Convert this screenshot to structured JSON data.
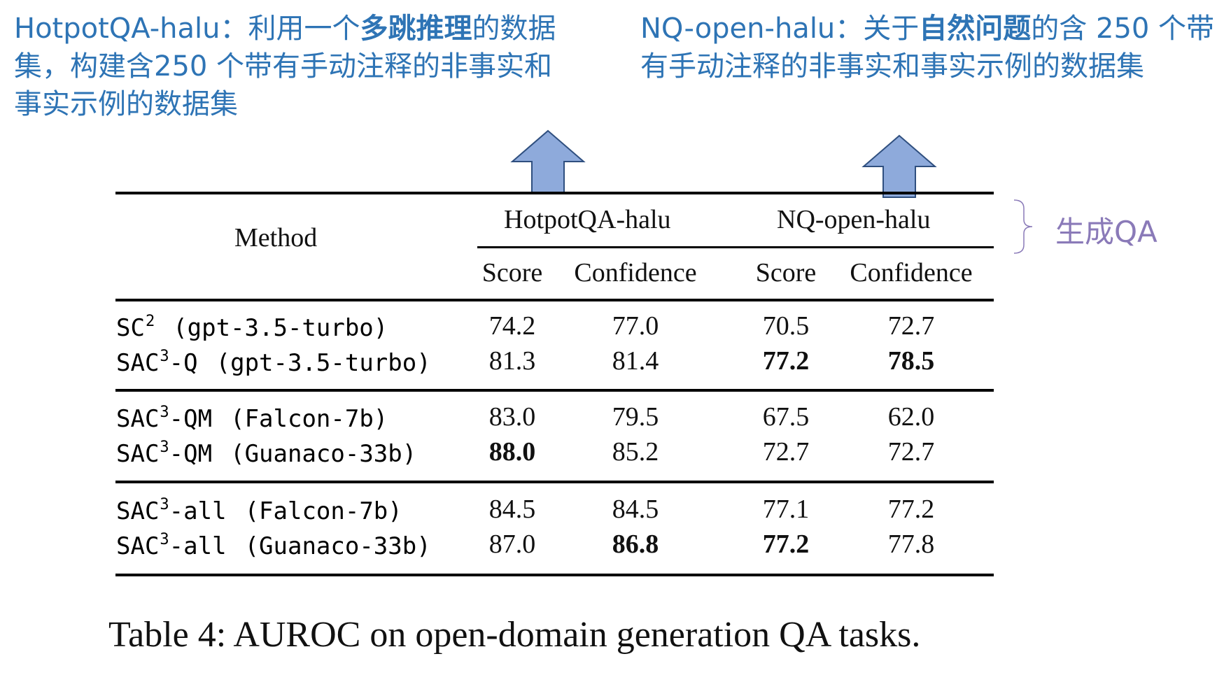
{
  "annotations": {
    "left": {
      "prefix": "HotpotQA-halu：利用一个",
      "bold": "多跳推理",
      "suffix": "的数据集，构建含250 个带有手动注释的非事实和事实示例的数据集"
    },
    "right": {
      "prefix": "NQ-open-halu：关于",
      "bold": "自然问题",
      "suffix": "的含 250 个带有手动注释的非事实和事实示例的数据集"
    },
    "brace_label": "生成QA"
  },
  "colors": {
    "annotation_text": "#2e74b5",
    "arrow_fill": "#8eaadb",
    "arrow_stroke": "#2f4f7f",
    "brace_label": "#8a7ab8"
  },
  "table": {
    "header": {
      "method": "Method",
      "group1": "HotpotQA-halu",
      "group2": "NQ-open-halu",
      "sub": [
        "Score",
        "Confidence",
        "Score",
        "Confidence"
      ]
    },
    "rows": [
      {
        "name": "SC",
        "sup": "2",
        "suffix": "",
        "model": "(gpt-3.5-turbo)",
        "values": [
          "74.2",
          "77.0",
          "70.5",
          "72.7"
        ],
        "bold": [
          false,
          false,
          false,
          false
        ]
      },
      {
        "name": "SAC",
        "sup": "3",
        "suffix": "-Q",
        "model": "(gpt-3.5-turbo)",
        "values": [
          "81.3",
          "81.4",
          "77.2",
          "78.5"
        ],
        "bold": [
          false,
          false,
          true,
          true
        ]
      },
      {
        "name": "SAC",
        "sup": "3",
        "suffix": "-QM",
        "model": "(Falcon-7b)",
        "values": [
          "83.0",
          "79.5",
          "67.5",
          "62.0"
        ],
        "bold": [
          false,
          false,
          false,
          false
        ]
      },
      {
        "name": "SAC",
        "sup": "3",
        "suffix": "-QM",
        "model": "(Guanaco-33b)",
        "values": [
          "88.0",
          "85.2",
          "72.7",
          "72.7"
        ],
        "bold": [
          true,
          false,
          false,
          false
        ]
      },
      {
        "name": "SAC",
        "sup": "3",
        "suffix": "-all",
        "model": "(Falcon-7b)",
        "values": [
          "84.5",
          "84.5",
          "77.1",
          "77.2"
        ],
        "bold": [
          false,
          false,
          false,
          false
        ]
      },
      {
        "name": "SAC",
        "sup": "3",
        "suffix": "-all",
        "model": "(Guanaco-33b)",
        "values": [
          "87.0",
          "86.8",
          "77.2",
          "77.8"
        ],
        "bold": [
          false,
          true,
          true,
          false
        ]
      }
    ]
  },
  "caption": "Table 4: AUROC on open-domain generation QA tasks."
}
